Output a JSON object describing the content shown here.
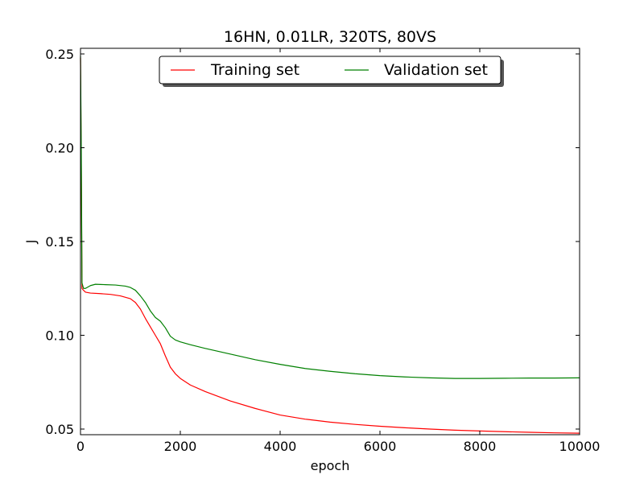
{
  "chart_data": {
    "type": "line",
    "title": "16HN, 0.01LR, 320TS, 80VS",
    "xlabel": "epoch",
    "ylabel": "J",
    "xlim": [
      0,
      10000
    ],
    "ylim": [
      0.047,
      0.253
    ],
    "xticks": [
      0,
      2000,
      4000,
      6000,
      8000,
      10000
    ],
    "xtick_labels": [
      "0",
      "2000",
      "4000",
      "6000",
      "8000",
      "10000"
    ],
    "yticks": [
      0.05,
      0.1,
      0.15,
      0.2,
      0.25
    ],
    "ytick_labels": [
      "0.05",
      "0.10",
      "0.15",
      "0.20",
      "0.25"
    ],
    "grid": false,
    "legend_position": "top-center",
    "series": [
      {
        "name": "Training set",
        "color": "#ff0000",
        "x": [
          0,
          15,
          30,
          60,
          100,
          200,
          400,
          600,
          800,
          1000,
          1100,
          1200,
          1300,
          1400,
          1500,
          1600,
          1700,
          1800,
          1900,
          2000,
          2200,
          2500,
          3000,
          3500,
          4000,
          4500,
          5000,
          5500,
          6000,
          6500,
          7000,
          7500,
          8000,
          8500,
          9000,
          9500,
          10000
        ],
        "y": [
          0.248,
          0.19,
          0.125,
          0.124,
          0.123,
          0.1225,
          0.1222,
          0.1218,
          0.121,
          0.1195,
          0.1175,
          0.114,
          0.109,
          0.1045,
          0.1,
          0.0955,
          0.089,
          0.083,
          0.0795,
          0.077,
          0.0735,
          0.07,
          0.065,
          0.061,
          0.0575,
          0.0553,
          0.0537,
          0.0525,
          0.0515,
          0.0507,
          0.05,
          0.0494,
          0.049,
          0.0486,
          0.0483,
          0.048,
          0.0478
        ]
      },
      {
        "name": "Validation set",
        "color": "#008000",
        "x": [
          0,
          15,
          30,
          60,
          100,
          200,
          300,
          500,
          700,
          900,
          1000,
          1100,
          1200,
          1300,
          1400,
          1500,
          1600,
          1700,
          1800,
          1900,
          2000,
          2200,
          2500,
          3000,
          3500,
          4000,
          4500,
          5000,
          5500,
          6000,
          6500,
          7000,
          7500,
          8000,
          8500,
          9000,
          9500,
          10000
        ],
        "y": [
          0.249,
          0.2,
          0.128,
          0.125,
          0.125,
          0.1265,
          0.1272,
          0.127,
          0.1268,
          0.1262,
          0.1255,
          0.124,
          0.121,
          0.1175,
          0.113,
          0.1095,
          0.1075,
          0.104,
          0.0995,
          0.0975,
          0.0965,
          0.095,
          0.093,
          0.09,
          0.087,
          0.0845,
          0.0823,
          0.0808,
          0.0795,
          0.0785,
          0.0778,
          0.0773,
          0.077,
          0.077,
          0.0771,
          0.0772,
          0.0772,
          0.0773
        ]
      }
    ]
  }
}
